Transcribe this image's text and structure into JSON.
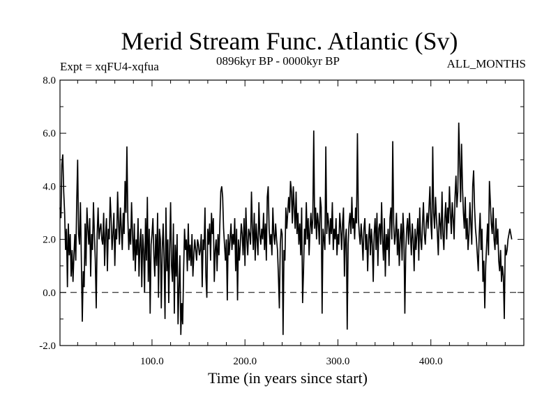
{
  "chart_data": {
    "type": "line",
    "title": "Merid Stream Func. Atlantic (Sv)",
    "subtitle": "0896kyr BP - 0000kyr BP",
    "left_label": "Expt = xqFU4-xqfua",
    "right_label": "ALL_MONTHS",
    "xlabel": "Time (in years since start)",
    "ylabel": "",
    "xlim": [
      1,
      500
    ],
    "ylim": [
      -2,
      8
    ],
    "x_ticks": [
      100,
      200,
      300,
      400
    ],
    "x_tick_labels": [
      "100.0",
      "200.0",
      "300.0",
      "400.0"
    ],
    "y_ticks": [
      -2,
      0,
      2,
      4,
      6,
      8
    ],
    "y_tick_labels": [
      "-2.0",
      "0.0",
      "2.0",
      "4.0",
      "6.0",
      "8.0"
    ],
    "reference_line": {
      "y": 0,
      "style": "dashed"
    },
    "grid": false,
    "series": [
      {
        "x_start": 1,
        "x_step": 1,
        "values": [
          3.2,
          2.8,
          4.8,
          5.2,
          3.8,
          3.0,
          1.6,
          2.4,
          0.2,
          2.6,
          1.4,
          2.2,
          0.6,
          1.6,
          0.4,
          1.4,
          2.2,
          1.2,
          3.4,
          5.0,
          2.2,
          1.8,
          3.4,
          1.2,
          -1.1,
          0.8,
          0.2,
          2.6,
          1.0,
          3.2,
          2.4,
          1.8,
          2.8,
          0.6,
          2.2,
          1.6,
          3.4,
          2.2,
          1.2,
          -0.6,
          2.2,
          3.2,
          2.0,
          2.4,
          2.6,
          2.0,
          1.8,
          3.0,
          1.0,
          2.2,
          2.8,
          0.8,
          2.4,
          2.0,
          3.6,
          2.8,
          1.6,
          2.2,
          3.0,
          1.0,
          2.4,
          2.0,
          3.8,
          2.6,
          1.8,
          3.2,
          2.4,
          1.6,
          3.0,
          2.2,
          4.2,
          3.0,
          5.5,
          2.8,
          1.6,
          2.4,
          1.8,
          3.4,
          2.2,
          1.2,
          2.6,
          0.8,
          2.0,
          1.4,
          2.8,
          0.6,
          1.8,
          2.4,
          0.2,
          2.2,
          1.6,
          0.0,
          2.8,
          1.2,
          3.6,
          0.4,
          2.4,
          -0.8,
          1.8,
          2.2,
          2.8,
          1.4,
          0.6,
          2.2,
          1.0,
          3.0,
          -0.2,
          2.4,
          2.0,
          -0.6,
          1.6,
          2.6,
          1.2,
          -1.0,
          3.2,
          0.8,
          2.0,
          -0.4,
          1.6,
          3.4,
          1.0,
          0.4,
          2.6,
          -0.8,
          1.8,
          0.6,
          2.2,
          -1.2,
          0.2,
          1.4,
          -1.6,
          -0.4,
          -1.2,
          0.8,
          2.4,
          1.6,
          2.0,
          0.8,
          2.6,
          1.2,
          1.8,
          1.0,
          2.2,
          0.6,
          1.4,
          2.0,
          1.6,
          1.2,
          2.0,
          1.8,
          1.4,
          1.6,
          2.2,
          0.2,
          2.0,
          1.6,
          3.2,
          0.6,
          -0.2,
          2.4,
          1.8,
          2.6,
          1.2,
          3.0,
          2.2,
          2.8,
          0.4,
          1.6,
          2.0,
          0.8,
          2.2,
          1.4,
          2.6,
          3.8,
          4.0,
          3.6,
          2.4,
          1.8,
          1.2,
          2.0,
          -0.3,
          2.2,
          1.4,
          2.0,
          2.6,
          1.6,
          2.2,
          1.8,
          2.8,
          0.8,
          2.4,
          -0.3,
          2.0,
          1.2,
          1.8,
          2.6,
          2.2,
          1.4,
          2.8,
          1.0,
          3.2,
          2.0,
          1.4,
          2.4,
          2.2,
          1.8,
          3.8,
          2.4,
          1.6,
          3.0,
          1.2,
          2.6,
          2.0,
          1.4,
          3.4,
          2.2,
          1.8,
          2.4,
          2.0,
          3.0,
          1.6,
          2.6,
          1.2,
          3.6,
          4.0,
          2.4,
          1.8,
          2.2,
          1.4,
          3.2,
          2.2,
          1.8,
          2.6,
          2.0,
          1.6,
          0.6,
          -0.6,
          1.8,
          2.4,
          2.2,
          -1.6,
          1.6,
          1.2,
          3.2,
          2.4,
          3.0,
          3.6,
          3.0,
          4.2,
          3.8,
          2.6,
          4.0,
          3.2,
          2.4,
          3.8,
          2.2,
          3.0,
          1.8,
          2.6,
          1.4,
          3.2,
          -0.4,
          0.8,
          2.4,
          1.8,
          3.4,
          2.0,
          2.8,
          1.4,
          2.4,
          3.0,
          2.2,
          2.8,
          6.1,
          2.4,
          3.2,
          2.0,
          3.0,
          2.6,
          1.8,
          3.6,
          3.2,
          -0.8,
          2.4,
          2.0,
          1.6,
          5.5,
          2.2,
          3.0,
          2.6,
          1.8,
          2.8,
          2.2,
          3.4,
          1.6,
          2.4,
          2.0,
          2.8,
          1.4,
          2.2,
          1.8,
          3.0,
          2.4,
          1.6,
          2.6,
          3.2,
          0.6,
          2.0,
          2.4,
          -1.4,
          1.8,
          2.6,
          3.0,
          2.2,
          3.6,
          2.4,
          2.8,
          2.0,
          3.2,
          2.6,
          6.0,
          2.8,
          2.2,
          1.8,
          2.6,
          2.0,
          1.2,
          2.4,
          2.8,
          1.6,
          2.2,
          0.8,
          2.0,
          2.6,
          1.4,
          2.4,
          1.8,
          0.4,
          2.2,
          2.8,
          1.6,
          3.0,
          1.0,
          2.4,
          2.6,
          1.8,
          3.4,
          2.0,
          1.2,
          2.8,
          0.6,
          2.2,
          1.6,
          2.4,
          1.0,
          2.8,
          3.2,
          2.0,
          5.7,
          2.6,
          1.8,
          2.2,
          3.0,
          1.4,
          2.4,
          1.0,
          2.0,
          2.6,
          1.2,
          3.0,
          2.2,
          -0.8,
          1.6,
          2.4,
          2.8,
          1.8,
          3.0,
          2.2,
          1.4,
          2.6,
          2.0,
          0.8,
          2.4,
          1.6,
          2.2,
          2.8,
          1.2,
          3.2,
          2.0,
          1.6,
          2.6,
          3.4,
          2.2,
          1.8,
          2.6,
          3.0,
          2.4,
          3.2,
          4.0,
          2.6,
          2.0,
          5.5,
          3.0,
          2.4,
          3.6,
          2.8,
          2.2,
          1.4,
          3.0,
          2.6,
          2.0,
          3.8,
          2.2,
          1.6,
          2.8,
          3.4,
          2.0,
          3.2,
          2.6,
          4.0,
          3.0,
          2.2,
          3.4,
          2.8,
          2.0,
          3.6,
          4.4,
          3.2,
          3.8,
          6.4,
          5.0,
          3.4,
          5.6,
          4.0,
          3.0,
          2.4,
          3.6,
          2.0,
          2.8,
          1.6,
          2.2,
          3.4,
          2.6,
          1.8,
          4.0,
          4.6,
          3.2,
          2.4,
          2.0,
          1.4,
          0.8,
          2.2,
          3.0,
          1.6,
          2.4,
          0.4,
          1.2,
          -0.6,
          1.0,
          1.8,
          2.6,
          1.4,
          4.2,
          3.4,
          2.6,
          2.2,
          3.2,
          2.0,
          1.6,
          2.8,
          1.8,
          2.4,
          1.2,
          0.8,
          1.6,
          0.4,
          1.0,
          0.6,
          -1.0,
          1.8,
          1.4,
          1.6,
          2.0,
          2.2,
          2.4,
          2.2,
          2.0
        ]
      }
    ]
  }
}
